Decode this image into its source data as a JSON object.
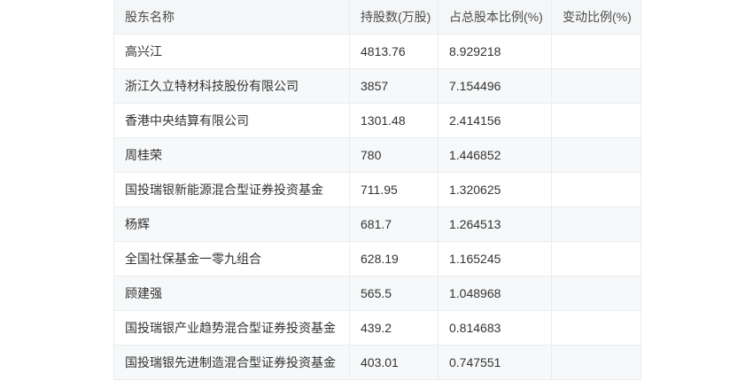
{
  "table": {
    "columns": [
      "股东名称",
      "持股数(万股)",
      "占总股本比例(%)",
      "变动比例(%)"
    ],
    "rows": [
      {
        "name": "高兴江",
        "shares": "4813.76",
        "pct": "8.929218",
        "change": ""
      },
      {
        "name": "浙江久立特材科技股份有限公司",
        "shares": "3857",
        "pct": "7.154496",
        "change": ""
      },
      {
        "name": "香港中央结算有限公司",
        "shares": "1301.48",
        "pct": "2.414156",
        "change": ""
      },
      {
        "name": "周桂荣",
        "shares": "780",
        "pct": "1.446852",
        "change": ""
      },
      {
        "name": "国投瑞银新能源混合型证券投资基金",
        "shares": "711.95",
        "pct": "1.320625",
        "change": ""
      },
      {
        "name": "杨辉",
        "shares": "681.7",
        "pct": "1.264513",
        "change": ""
      },
      {
        "name": "全国社保基金一零九组合",
        "shares": "628.19",
        "pct": "1.165245",
        "change": ""
      },
      {
        "name": "顾建强",
        "shares": "565.5",
        "pct": "1.048968",
        "change": ""
      },
      {
        "name": "国投瑞银产业趋势混合型证券投资基金",
        "shares": "439.2",
        "pct": "0.814683",
        "change": ""
      },
      {
        "name": "国投瑞银先进制造混合型证券投资基金",
        "shares": "403.01",
        "pct": "0.747551",
        "change": ""
      }
    ]
  },
  "colors": {
    "page_bg": "#ffffff",
    "header_bg": "#f5f6f7",
    "row_alt_bg": "#f7f8f9",
    "border": "#ebecee",
    "header_text": "#4d4d4d",
    "cell_text": "#333333"
  }
}
